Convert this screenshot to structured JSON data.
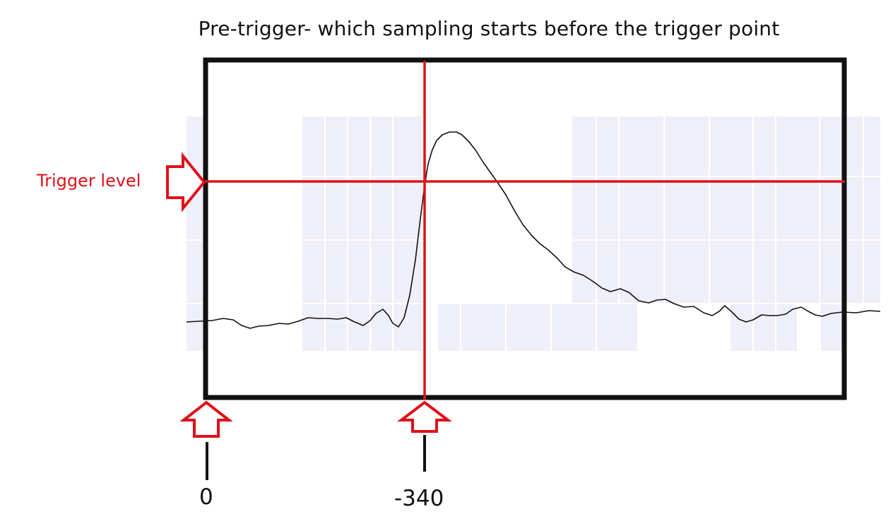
{
  "title": "Pre-trigger- which sampling starts before the trigger point",
  "trigger_level_label": "Trigger level",
  "markers": {
    "start_label": "0",
    "trigger_label": "-340"
  },
  "colors": {
    "frame": "#111111",
    "trigger": "#e0101a",
    "grid_shade": "#eeeff8",
    "waveform": "#111111"
  },
  "icons": {
    "level_arrow": "right-arrow-icon",
    "marker_arrow": "up-arrow-icon"
  }
}
